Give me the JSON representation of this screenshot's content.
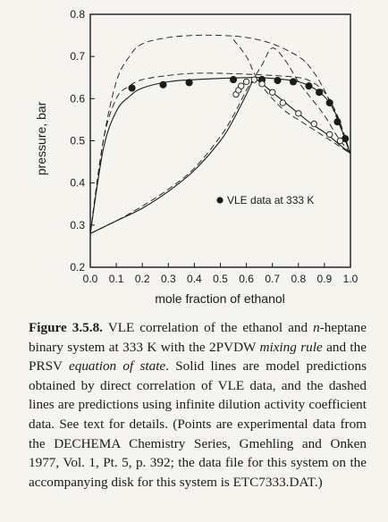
{
  "chart_data": {
    "type": "scatter",
    "title": "",
    "xlabel": "mole fraction of ethanol",
    "ylabel": "pressure, bar",
    "xlim": [
      0.0,
      1.0
    ],
    "ylim": [
      0.2,
      0.8
    ],
    "x_ticks": [
      "0.0",
      "0.1",
      "0.2",
      "0.3",
      "0.4",
      "0.5",
      "0.6",
      "0.7",
      "0.8",
      "0.9",
      "1.0"
    ],
    "y_ticks": [
      "0.2",
      "0.3",
      "0.4",
      "0.5",
      "0.6",
      "0.7",
      "0.8"
    ],
    "grid": false,
    "legend": {
      "position": "center-right",
      "entries": [
        "VLE data at 333 K"
      ]
    },
    "series": [
      {
        "name": "VLE data at 333 K",
        "kind": "experimental points, vapor (filled)",
        "x": [
          0.16,
          0.28,
          0.38,
          0.55,
          0.66,
          0.72,
          0.78,
          0.84,
          0.88,
          0.92,
          0.95,
          0.98
        ],
        "y": [
          0.625,
          0.633,
          0.638,
          0.645,
          0.645,
          0.643,
          0.64,
          0.63,
          0.615,
          0.59,
          0.545,
          0.505
        ]
      },
      {
        "kind": "experimental points, liquid (open)",
        "x": [
          0.56,
          0.57,
          0.58,
          0.6,
          0.63,
          0.66,
          0.7,
          0.74,
          0.8,
          0.86,
          0.92,
          0.96
        ],
        "y": [
          0.61,
          0.62,
          0.63,
          0.64,
          0.645,
          0.635,
          0.615,
          0.59,
          0.565,
          0.54,
          0.515,
          0.5
        ]
      },
      {
        "kind": "model prediction, direct correlation (solid), vapor",
        "x": [
          0.0,
          0.05,
          0.1,
          0.15,
          0.2,
          0.3,
          0.4,
          0.5,
          0.6,
          0.65,
          0.7,
          0.75,
          0.8,
          0.85,
          0.9,
          0.93,
          0.95,
          0.97,
          0.99,
          1.0
        ],
        "y": [
          0.28,
          0.48,
          0.57,
          0.605,
          0.625,
          0.64,
          0.645,
          0.648,
          0.65,
          0.65,
          0.648,
          0.645,
          0.64,
          0.628,
          0.605,
          0.58,
          0.555,
          0.52,
          0.485,
          0.47
        ]
      },
      {
        "kind": "model prediction, direct correlation (solid), liquid",
        "x": [
          0.0,
          0.1,
          0.2,
          0.3,
          0.4,
          0.5,
          0.55,
          0.6,
          0.63,
          0.66,
          0.7,
          0.75,
          0.8,
          0.85,
          0.9,
          0.95,
          1.0
        ],
        "y": [
          0.28,
          0.31,
          0.34,
          0.38,
          0.43,
          0.5,
          0.55,
          0.61,
          0.645,
          0.635,
          0.615,
          0.59,
          0.565,
          0.54,
          0.52,
          0.495,
          0.47
        ]
      },
      {
        "kind": "infinite dilution prediction (dashed), upper",
        "x": [
          0.0,
          0.05,
          0.1,
          0.15,
          0.2,
          0.3,
          0.4,
          0.5,
          0.6,
          0.7,
          0.8,
          0.85,
          0.9,
          0.95,
          1.0
        ],
        "y": [
          0.28,
          0.5,
          0.64,
          0.7,
          0.73,
          0.745,
          0.75,
          0.75,
          0.745,
          0.73,
          0.7,
          0.67,
          0.62,
          0.55,
          0.47
        ]
      },
      {
        "kind": "infinite dilution prediction (dashed), middle",
        "x": [
          0.0,
          0.05,
          0.1,
          0.15,
          0.2,
          0.3,
          0.4,
          0.5,
          0.6,
          0.7,
          0.8,
          0.85,
          0.9,
          0.95,
          1.0
        ],
        "y": [
          0.28,
          0.5,
          0.6,
          0.63,
          0.645,
          0.655,
          0.66,
          0.66,
          0.658,
          0.655,
          0.65,
          0.64,
          0.615,
          0.56,
          0.47
        ]
      },
      {
        "kind": "infinite dilution prediction (dashed), liquid",
        "x": [
          0.0,
          0.1,
          0.2,
          0.3,
          0.4,
          0.5,
          0.55,
          0.6,
          0.63,
          0.66,
          0.7,
          0.75,
          0.8,
          0.85,
          0.9,
          0.95,
          1.0
        ],
        "y": [
          0.28,
          0.31,
          0.345,
          0.385,
          0.435,
          0.51,
          0.56,
          0.62,
          0.65,
          0.68,
          0.72,
          0.69,
          0.64,
          0.6,
          0.56,
          0.51,
          0.47
        ]
      },
      {
        "kind": "infinite dilution prediction (dashed), crossing",
        "x": [
          0.55,
          0.6,
          0.63,
          0.66,
          0.7,
          0.75,
          0.8,
          0.85,
          0.9,
          0.95,
          1.0
        ],
        "y": [
          0.74,
          0.7,
          0.66,
          0.63,
          0.6,
          0.57,
          0.55,
          0.53,
          0.51,
          0.49,
          0.47
        ]
      }
    ]
  },
  "caption": {
    "figure_label": "Figure 3.5.8.",
    "text_1": " VLE correlation of the ethanol and ",
    "italic_n": "n",
    "text_2": "-heptane binary system at 333 K with the 2PVDW ",
    "italic_mixing_rule": "mixing rule",
    "text_3": " and the PRSV ",
    "italic_eos": "equation of state",
    "text_4": ". Solid lines are model predictions obtained by direct correlation of VLE data, and the dashed lines are predictions using infinite dilution activity coefficient data. See text for details. (Points are experimental data from the DECHEMA Chemistry Series, Gmehling and Onken 1977, Vol. 1, Pt. 5, p. 392; the data file for this system on the accompanying disk for this system is ETC7333.DAT.)"
  }
}
